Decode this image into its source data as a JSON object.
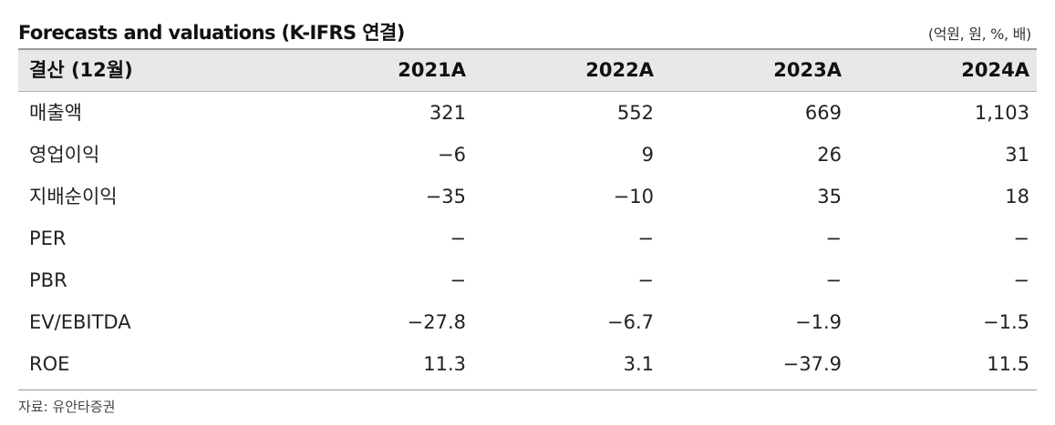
{
  "title": "Forecasts and valuations (K-IFRS 연결)",
  "unit": "(억원, 원, %, 배)",
  "header": [
    "결산 (12월)",
    "2021A",
    "2022A",
    "2023A",
    "2024A"
  ],
  "rows": [
    {
      "label": "매출액",
      "values": [
        "321",
        "552",
        "669",
        "1,103"
      ]
    },
    {
      "label": "영업이익",
      "values": [
        "−6",
        "9",
        "26",
        "31"
      ]
    },
    {
      "label": "지배순이익",
      "values": [
        "−35",
        "−10",
        "35",
        "18"
      ]
    },
    {
      "label": "PER",
      "values": [
        "−",
        "−",
        "−",
        "−"
      ]
    },
    {
      "label": "PBR",
      "values": [
        "−",
        "−",
        "−",
        "−"
      ]
    },
    {
      "label": "EV/EBITDA",
      "values": [
        "−27.8",
        "−6.7",
        "−1.9",
        "−1.5"
      ]
    },
    {
      "label": "ROE",
      "values": [
        "11.3",
        "3.1",
        "−37.9",
        "11.5"
      ]
    }
  ],
  "source": "자료: 유안타증권"
}
